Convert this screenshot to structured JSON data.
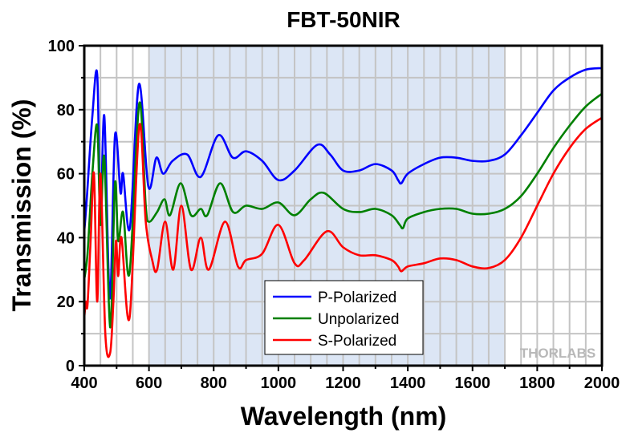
{
  "chart_data": {
    "type": "line",
    "title": "FBT-50NIR",
    "xlabel": "Wavelength (nm)",
    "ylabel": "Transmission (%)",
    "xlim": [
      400,
      2000
    ],
    "ylim": [
      0,
      100
    ],
    "xticks": [
      400,
      600,
      800,
      1000,
      1200,
      1400,
      1600,
      1800,
      2000
    ],
    "yticks": [
      0,
      20,
      40,
      60,
      80,
      100
    ],
    "grid": true,
    "shaded_region": {
      "x": [
        600,
        1700
      ],
      "color": "#dce6f5"
    },
    "legend_position": "bottom-center",
    "watermark": "THORLABS",
    "series": [
      {
        "name": "P-Polarized",
        "color": "#0000ff",
        "x": [
          400,
          407,
          425,
          440,
          450,
          462,
          479,
          495,
          512,
          520,
          541,
          569,
          598,
          623,
          644,
          673,
          718,
          760,
          814,
          859,
          900,
          950,
          1000,
          1050,
          1120,
          1160,
          1200,
          1250,
          1300,
          1350,
          1370,
          1380,
          1400,
          1450,
          1500,
          1550,
          1600,
          1650,
          1700,
          1750,
          1800,
          1850,
          1900,
          1950,
          2000
        ],
        "y": [
          42,
          51,
          78,
          91,
          47,
          78,
          21,
          72,
          54,
          60,
          43,
          88,
          56,
          65,
          60,
          64,
          66,
          59,
          72,
          65,
          67,
          64,
          58,
          61,
          69,
          66,
          61,
          61,
          63,
          61,
          58,
          57,
          60,
          63,
          65,
          65,
          64,
          64,
          66,
          72,
          79,
          86,
          90,
          92.5,
          93
        ]
      },
      {
        "name": "Unpolarized",
        "color": "#008000",
        "x": [
          400,
          410,
          425,
          440,
          450,
          462,
          480,
          495,
          505,
          520,
          540,
          570,
          590,
          600,
          625,
          648,
          665,
          698,
          730,
          760,
          780,
          820,
          860,
          900,
          950,
          1000,
          1050,
          1100,
          1140,
          1200,
          1250,
          1300,
          1350,
          1375,
          1385,
          1400,
          1450,
          1500,
          1550,
          1600,
          1650,
          1700,
          1750,
          1800,
          1850,
          1900,
          1950,
          2000
        ],
        "y": [
          27,
          35,
          60,
          75,
          44,
          65,
          12,
          57,
          39,
          48,
          29,
          82,
          50,
          45,
          48,
          52,
          47,
          57,
          47,
          49,
          47,
          57,
          48,
          50,
          49,
          51,
          47,
          52,
          54,
          49,
          48,
          49,
          47,
          44,
          43,
          46,
          48,
          49,
          49,
          47.5,
          47.5,
          49,
          53,
          60,
          68,
          75,
          81,
          85
        ]
      },
      {
        "name": "S-Polarized",
        "color": "#ff0000",
        "x": [
          400,
          405,
          410,
          420,
          430,
          440,
          450,
          465,
          480,
          490,
          498,
          505,
          515,
          540,
          570,
          590,
          610,
          625,
          650,
          675,
          700,
          730,
          760,
          785,
          835,
          875,
          900,
          950,
          1000,
          1050,
          1080,
          1150,
          1200,
          1250,
          1300,
          1350,
          1370,
          1380,
          1400,
          1450,
          1500,
          1550,
          1600,
          1650,
          1700,
          1750,
          1800,
          1850,
          1900,
          1950,
          2000
        ],
        "y": [
          15,
          20,
          19,
          40,
          60,
          20,
          60,
          10,
          4,
          20,
          39,
          28,
          40,
          15,
          75,
          45,
          33,
          30,
          45,
          30,
          50,
          30,
          40,
          30,
          45,
          31,
          33,
          35,
          44,
          32,
          33,
          42,
          37,
          34.5,
          34.5,
          33,
          31,
          29.5,
          31,
          32,
          33.5,
          33,
          31,
          30.5,
          33,
          40,
          50,
          60,
          68,
          74,
          77.5
        ]
      }
    ]
  }
}
